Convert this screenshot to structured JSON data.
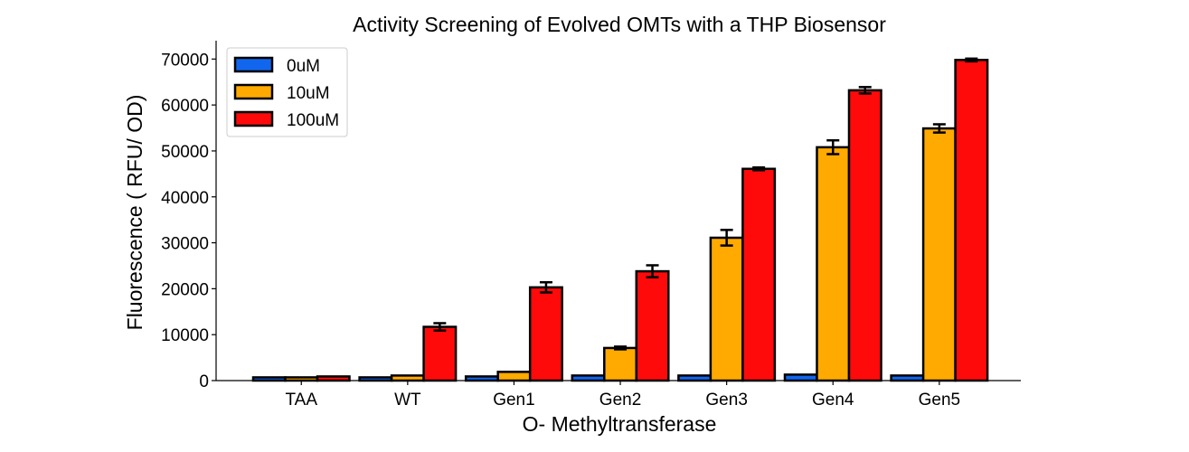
{
  "chart_data": {
    "type": "bar",
    "title": "Activity Screening of Evolved OMTs with a THP Biosensor",
    "xlabel": "O- Methyltransferase",
    "ylabel": "Fluorescence ( RFU/ OD)",
    "ylim": [
      0,
      74000
    ],
    "yticks": [
      0,
      10000,
      20000,
      30000,
      40000,
      50000,
      60000,
      70000
    ],
    "categories": [
      "TAA",
      "WT",
      "Gen1",
      "Gen2",
      "Gen3",
      "Gen4",
      "Gen5"
    ],
    "series": [
      {
        "name": "0uM",
        "color": "#1166ee",
        "values": [
          700,
          700,
          900,
          1100,
          1100,
          1300,
          1100
        ],
        "errors": [
          0,
          0,
          0,
          0,
          0,
          0,
          0
        ]
      },
      {
        "name": "10uM",
        "color": "#ffaa00",
        "values": [
          700,
          1100,
          1900,
          7100,
          31100,
          50800,
          54900
        ],
        "errors": [
          0,
          0,
          0,
          300,
          1700,
          1500,
          900
        ]
      },
      {
        "name": "100uM",
        "color": "#ff0a0a",
        "values": [
          900,
          11700,
          20300,
          23800,
          46100,
          63200,
          69800
        ],
        "errors": [
          0,
          800,
          1100,
          1300,
          300,
          700,
          300
        ]
      }
    ],
    "legend_position": "top-left",
    "grid": false,
    "error_bars": true
  }
}
